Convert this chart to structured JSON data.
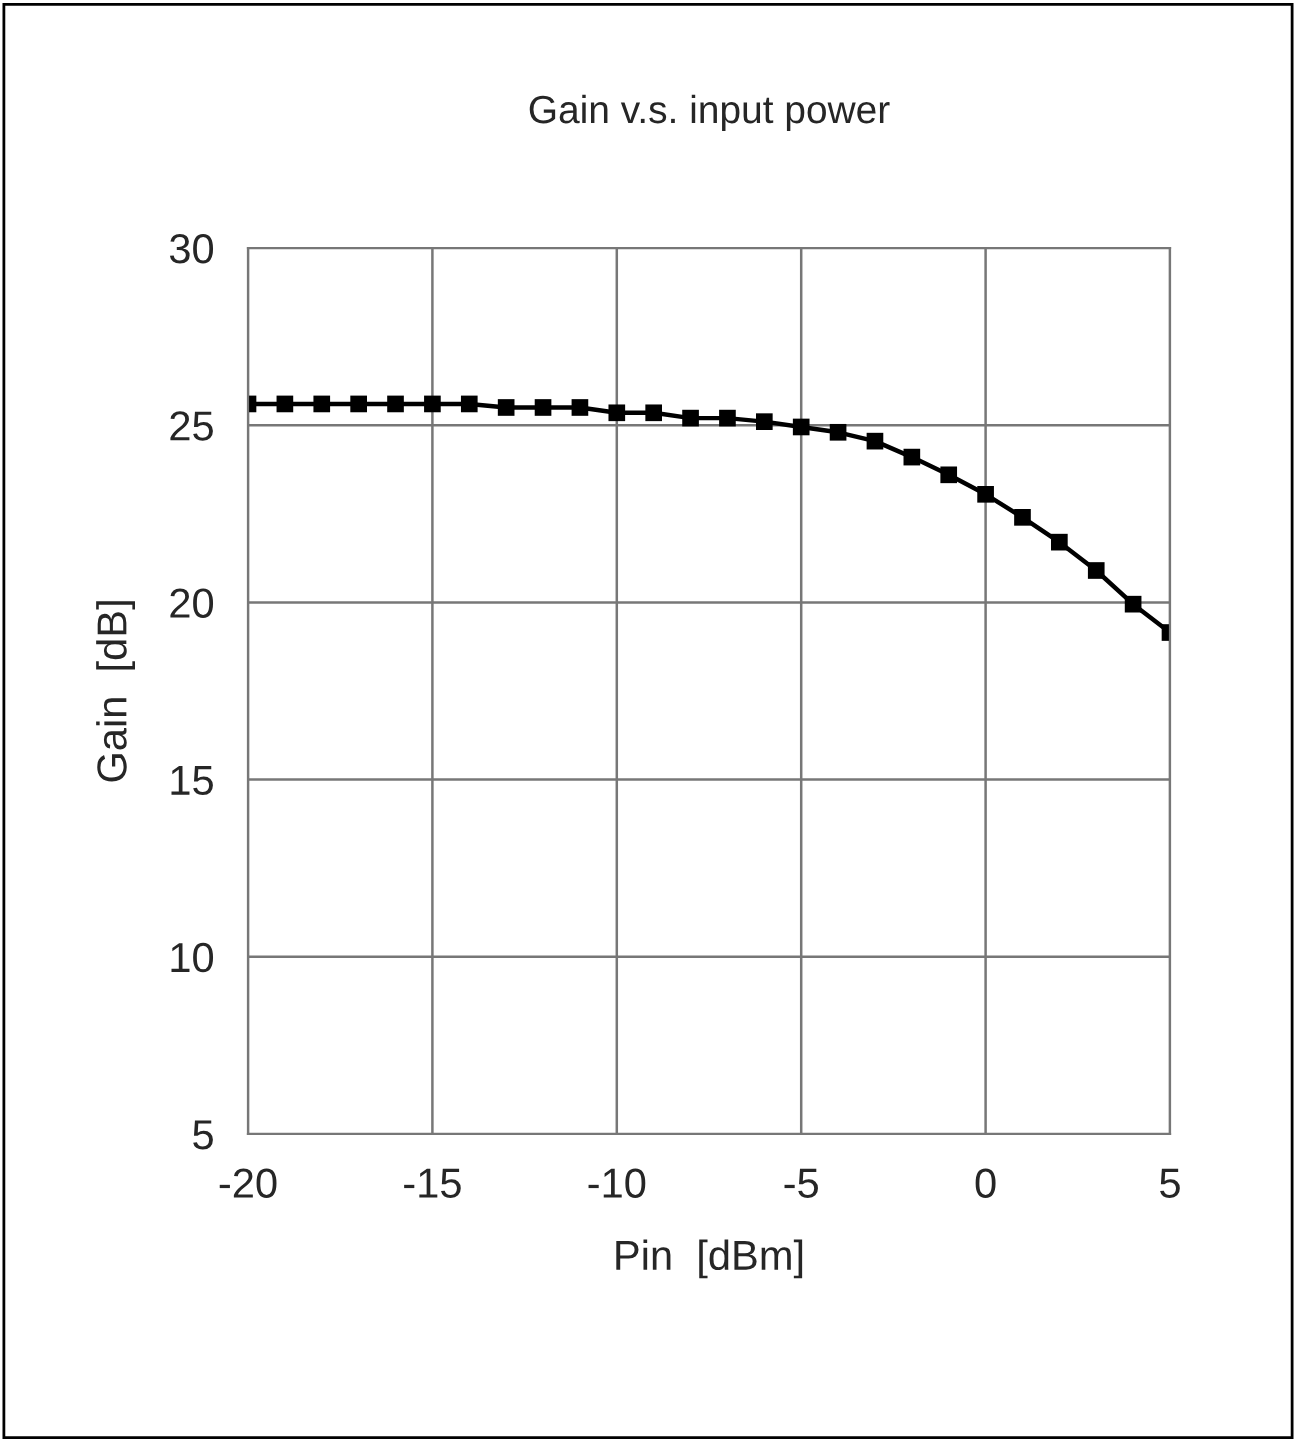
{
  "chart_data": {
    "type": "line",
    "title": "Gain v.s. input power",
    "xlabel": "Pin  [dBm]",
    "ylabel": "Gain  [dB]",
    "x": [
      -20,
      -19,
      -18,
      -17,
      -16,
      -15,
      -14,
      -13,
      -12,
      -11,
      -10,
      -9,
      -8,
      -7,
      -6,
      -5,
      -4,
      -3,
      -2,
      -1,
      0,
      1,
      2,
      3,
      4,
      5
    ],
    "series": [
      {
        "color": "#000000",
        "values": [
          25.6,
          25.6,
          25.6,
          25.6,
          25.6,
          25.6,
          25.6,
          25.5,
          25.5,
          25.5,
          25.35,
          25.35,
          25.2,
          25.2,
          25.1,
          24.95,
          24.8,
          24.55,
          24.1,
          23.6,
          23.05,
          22.4,
          21.7,
          20.9,
          19.95,
          19.15
        ]
      }
    ],
    "xlim": [
      -20,
      5
    ],
    "xticks": [
      -20,
      -15,
      -10,
      -5,
      0,
      5
    ],
    "ylim": [
      5,
      30
    ],
    "yticks": [
      5,
      10,
      15,
      20,
      25,
      30
    ],
    "grid": true,
    "marker": "square",
    "line_style": "solid",
    "legend": false
  }
}
